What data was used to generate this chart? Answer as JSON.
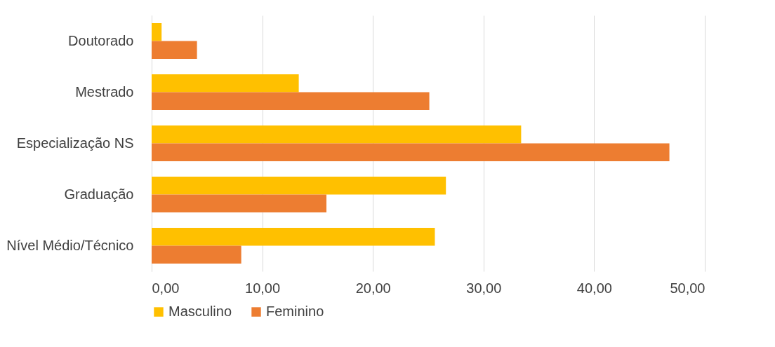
{
  "chart_data": {
    "type": "bar",
    "orientation": "horizontal",
    "categories": [
      "Doutorado",
      "Mestrado",
      "Especialização NS",
      "Graduação",
      "Nível Médio/Técnico"
    ],
    "series": [
      {
        "name": "Masculino",
        "color": "#ffc000",
        "values": [
          0.9,
          13.3,
          33.4,
          26.6,
          25.6
        ]
      },
      {
        "name": "Feminino",
        "color": "#ed7d31",
        "values": [
          4.1,
          25.1,
          46.8,
          15.8,
          8.1
        ]
      }
    ],
    "xlim": [
      0,
      50
    ],
    "xticks": [
      {
        "value": 0,
        "label": "0,00"
      },
      {
        "value": 10,
        "label": "10,00"
      },
      {
        "value": 20,
        "label": "20,00"
      },
      {
        "value": 30,
        "label": "30,00"
      },
      {
        "value": 40,
        "label": "40,00"
      },
      {
        "value": 50,
        "label": "50,00"
      }
    ],
    "grid": "x",
    "legend": "bottom"
  }
}
